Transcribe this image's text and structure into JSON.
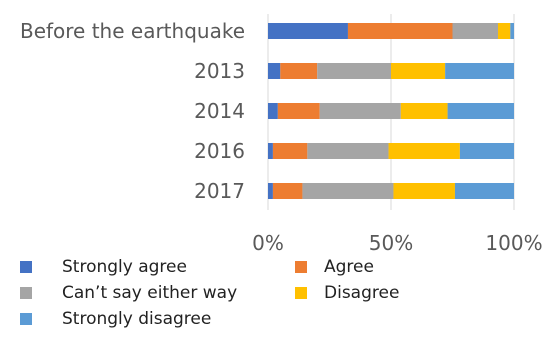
{
  "chart_data": {
    "type": "bar",
    "orientation": "horizontal",
    "stacked": "percent",
    "categories": [
      "Before the earthquake",
      "2013",
      "2014",
      "2016",
      "2017"
    ],
    "series": [
      {
        "name": "Strongly agree",
        "color": "#4472C4",
        "values": [
          32.5,
          5,
          4,
          2,
          2
        ]
      },
      {
        "name": "Agree",
        "color": "#ED7D31",
        "values": [
          42.5,
          15,
          17,
          14,
          12
        ]
      },
      {
        "name": "Can’t say either way",
        "color": "#A5A5A5",
        "values": [
          18.5,
          30,
          33,
          33,
          37
        ]
      },
      {
        "name": "Disagree",
        "color": "#FFC000",
        "values": [
          5,
          22,
          19,
          29,
          25
        ]
      },
      {
        "name": "Strongly disagree",
        "color": "#5B9BD5",
        "values": [
          1.5,
          28,
          27,
          22,
          24
        ]
      }
    ],
    "xlim": [
      0,
      100
    ],
    "x_ticks": [
      "0%",
      "50%",
      "100%"
    ],
    "grid": true,
    "legend_position": "bottom"
  }
}
